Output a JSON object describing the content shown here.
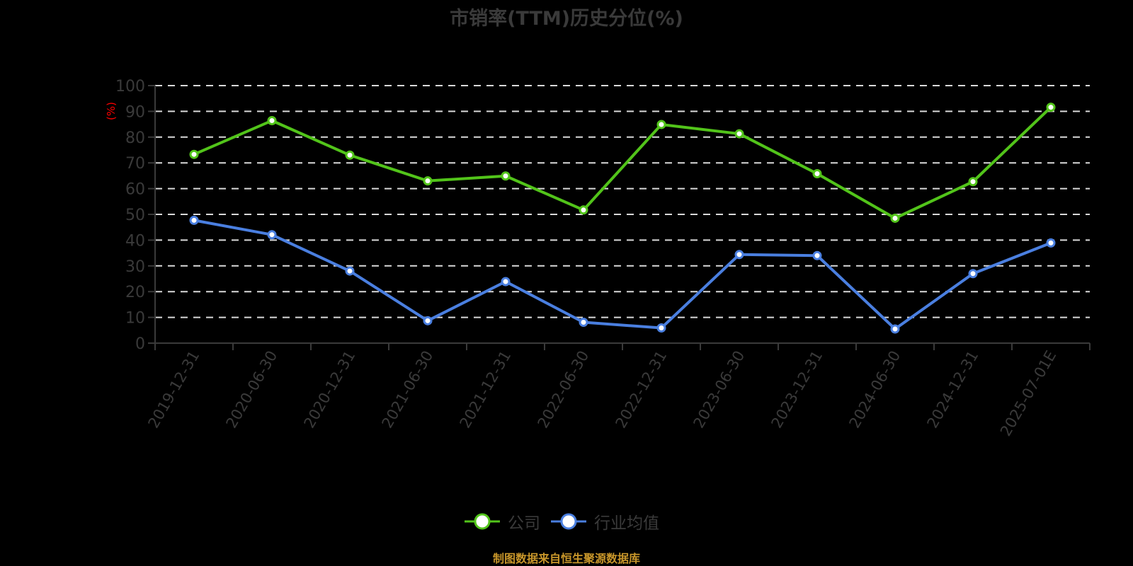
{
  "title": "市销率(TTM)历史分位(%)",
  "footer": "制图数据来自恒生聚源数据库",
  "y_axis_unit_label": "(%)",
  "colors": {
    "background": "#000000",
    "company": "#52c41a",
    "industry": "#4a7fe0",
    "axis_text": "#3a3a3a",
    "grid": "#d9d9d9",
    "unit_label": "#ff0000",
    "footer": "#c8962a"
  },
  "legend": [
    {
      "name": "公司",
      "color": "#52c41a"
    },
    {
      "name": "行业均值",
      "color": "#4a7fe0"
    }
  ],
  "chart_data": {
    "type": "line",
    "title": "市销率(TTM)历史分位(%)",
    "xlabel": "",
    "ylabel": "(%)",
    "ylim": [
      0,
      100
    ],
    "yticks": [
      0,
      10,
      20,
      30,
      40,
      50,
      60,
      70,
      80,
      90,
      100
    ],
    "grid": true,
    "legend_position": "bottom",
    "categories": [
      "2019-12-31",
      "2020-06-30",
      "2020-12-31",
      "2021-06-30",
      "2021-12-31",
      "2022-06-30",
      "2022-12-31",
      "2023-06-30",
      "2023-12-31",
      "2024-06-30",
      "2024-12-31",
      "2025-07-01E"
    ],
    "series": [
      {
        "name": "公司",
        "color": "#52c41a",
        "values": [
          73.3,
          86.4,
          73.0,
          63.0,
          64.9,
          51.7,
          84.9,
          81.3,
          65.8,
          48.5,
          62.7,
          91.6
        ]
      },
      {
        "name": "行业均值",
        "color": "#4a7fe0",
        "values": [
          47.7,
          42.1,
          28.0,
          8.7,
          23.9,
          8.1,
          5.9,
          34.4,
          34.0,
          5.5,
          27.0,
          38.9
        ]
      }
    ]
  }
}
